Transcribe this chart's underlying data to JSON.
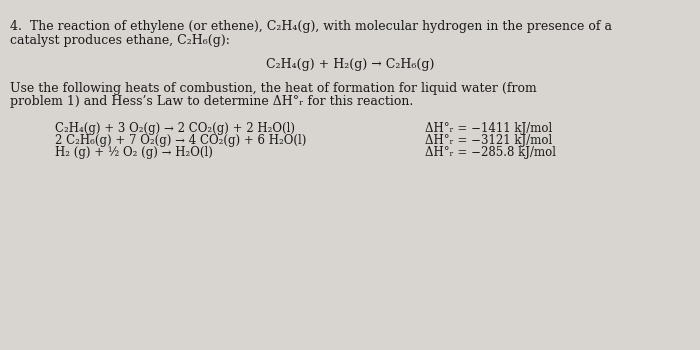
{
  "bg_color": "#d8d4d0",
  "text_color": "#1a1a1a",
  "title_line1": "4.  The reaction of ethylene (or ethene), C₂H₄(g), with molecular hydrogen in the presence of a",
  "title_line2": "catalyst produces ethane, C₂H₆(g):",
  "main_reaction": "C₂H₄(g) + H₂(g) → C₂H₆(g)",
  "instruction_line1": "Use the following heats of combustion, the heat of formation for liquid water (from",
  "instruction_line2": "problem 1) and Hess’s Law to determine ΔH°ᵣ for this reaction.",
  "rxn1_left": "C₂H₄(g) + 3 O₂(g) → 2 CO₂(g) + 2 H₂O(l)",
  "rxn2_left": "2 C₂H₆(g) + 7 O₂(g) → 4 CO₂(g) + 6 H₂O(l)",
  "rxn3_left": "H₂ (g) + ½ O₂ (g) → H₂O(l)",
  "rxn1_right": "ΔH°ᵣ = −1411 kJ/mol",
  "rxn2_right": "ΔH°ᵣ = −3121 kJ/mol",
  "rxn3_right": "ΔH°ᵣ = −285.8 kJ/mol"
}
